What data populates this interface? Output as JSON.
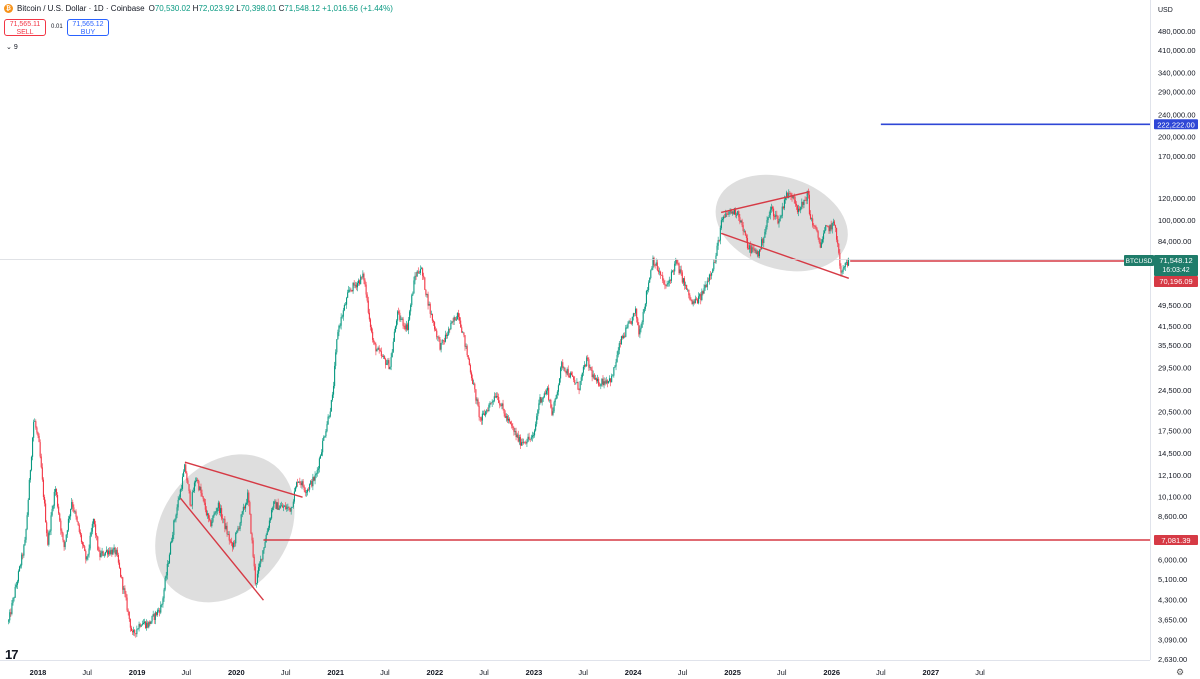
{
  "header": {
    "symbol_title": "Bitcoin / U.S. Dollar · 1D · Coinbase",
    "coin_icon": "bitcoin-icon",
    "ohlc": [
      {
        "label": "O",
        "value": "70,530.02"
      },
      {
        "label": "H",
        "value": "72,023.92"
      },
      {
        "label": "L",
        "value": "70,398.01"
      },
      {
        "label": "C",
        "value": "71,548.12"
      }
    ],
    "change": "+1,016.56 (+1.44%)"
  },
  "trade": {
    "sell_price": "71,565.11",
    "sell_label": "SELL",
    "spread": "0.01",
    "buy_price": "71,565.12",
    "buy_label": "BUY"
  },
  "indicator_count": "9",
  "branding": {
    "logo_text": "17"
  },
  "colors": {
    "up": "#089981",
    "down": "#f23645",
    "hline_red": "#d63a45",
    "hline_blue": "#2f47d6",
    "ellipse": "#d3d3d3"
  },
  "chart_data": {
    "type": "candlestick",
    "currency": "USD",
    "scale": "log",
    "yaxis_ticks": [
      480000,
      410000,
      340000,
      290000,
      240000,
      200000,
      170000,
      120000,
      100000,
      84000,
      49500,
      41500,
      35500,
      29500,
      24500,
      20500,
      17500,
      14500,
      12100,
      10100,
      8600,
      6000,
      5100,
      4300,
      3650,
      3090,
      2630
    ],
    "yaxis_tick_labels": [
      "480,000.00",
      "410,000.00",
      "340,000.00",
      "290,000.00",
      "240,000.00",
      "200,000.00",
      "170,000.00",
      "120,000.00",
      "100,000.00",
      "84,000.00",
      "49,500.00",
      "41,500.00",
      "35,500.00",
      "29,500.00",
      "24,500.00",
      "20,500.00",
      "17,500.00",
      "14,500.00",
      "12,100.00",
      "10,100.00",
      "8,600.00",
      "6,000.00",
      "5,100.00",
      "4,300.00",
      "3,650.00",
      "3,090.00",
      "2,630.00"
    ],
    "xaxis_labels": [
      "2018",
      "Jul",
      "2019",
      "Jul",
      "2020",
      "Jul",
      "2021",
      "Jul",
      "2022",
      "Jul",
      "2023",
      "Jul",
      "2024",
      "Jul",
      "2025",
      "Jul",
      "2026",
      "Jul",
      "2027",
      "Jul"
    ],
    "xaxis_label_dates": [
      "2018-01-01",
      "2018-07-01",
      "2019-01-01",
      "2019-07-01",
      "2020-01-01",
      "2020-07-01",
      "2021-01-01",
      "2021-07-01",
      "2022-01-01",
      "2022-07-01",
      "2023-01-01",
      "2023-07-01",
      "2024-01-01",
      "2024-07-01",
      "2025-01-01",
      "2025-07-01",
      "2026-01-01",
      "2026-07-01",
      "2027-01-01",
      "2027-07-01"
    ],
    "price_path": [
      [
        "2017-09-15",
        3600
      ],
      [
        "2017-11-15",
        7000
      ],
      [
        "2017-12-17",
        19500
      ],
      [
        "2018-01-05",
        15500
      ],
      [
        "2018-02-06",
        6900
      ],
      [
        "2018-03-05",
        11000
      ],
      [
        "2018-04-06",
        6600
      ],
      [
        "2018-05-05",
        9800
      ],
      [
        "2018-06-29",
        5900
      ],
      [
        "2018-07-24",
        8400
      ],
      [
        "2018-08-14",
        6200
      ],
      [
        "2018-09-15",
        6500
      ],
      [
        "2018-10-15",
        6400
      ],
      [
        "2018-11-20",
        4300
      ],
      [
        "2018-12-15",
        3200
      ],
      [
        "2019-01-15",
        3600
      ],
      [
        "2019-02-10",
        3500
      ],
      [
        "2019-04-01",
        4100
      ],
      [
        "2019-05-15",
        8000
      ],
      [
        "2019-06-26",
        13000
      ],
      [
        "2019-07-17",
        9500
      ],
      [
        "2019-08-06",
        12000
      ],
      [
        "2019-09-26",
        8000
      ],
      [
        "2019-10-26",
        9500
      ],
      [
        "2019-12-17",
        6600
      ],
      [
        "2020-02-13",
        10300
      ],
      [
        "2020-03-12",
        4900
      ],
      [
        "2020-04-15",
        7000
      ],
      [
        "2020-05-15",
        9500
      ],
      [
        "2020-06-15",
        9300
      ],
      [
        "2020-07-20",
        9200
      ],
      [
        "2020-08-15",
        11800
      ],
      [
        "2020-09-15",
        10700
      ],
      [
        "2020-10-20",
        12000
      ],
      [
        "2020-11-15",
        16000
      ],
      [
        "2020-12-20",
        23000
      ],
      [
        "2021-01-08",
        40000
      ],
      [
        "2021-02-20",
        56000
      ],
      [
        "2021-04-14",
        63000
      ],
      [
        "2021-05-19",
        36000
      ],
      [
        "2021-06-22",
        32000
      ],
      [
        "2021-07-20",
        30000
      ],
      [
        "2021-08-15",
        46000
      ],
      [
        "2021-09-21",
        41000
      ],
      [
        "2021-10-20",
        63000
      ],
      [
        "2021-11-10",
        68000
      ],
      [
        "2021-12-15",
        47000
      ],
      [
        "2022-01-22",
        35000
      ],
      [
        "2022-03-28",
        47000
      ],
      [
        "2022-05-12",
        29000
      ],
      [
        "2022-06-18",
        19000
      ],
      [
        "2022-08-15",
        24000
      ],
      [
        "2022-09-15",
        20000
      ],
      [
        "2022-11-09",
        16000
      ],
      [
        "2022-12-30",
        16500
      ],
      [
        "2023-01-20",
        22500
      ],
      [
        "2023-02-20",
        24500
      ],
      [
        "2023-03-10",
        20000
      ],
      [
        "2023-04-14",
        30500
      ],
      [
        "2023-06-15",
        25000
      ],
      [
        "2023-07-13",
        31500
      ],
      [
        "2023-08-17",
        26000
      ],
      [
        "2023-10-15",
        27000
      ],
      [
        "2023-11-15",
        36500
      ],
      [
        "2024-01-11",
        47000
      ],
      [
        "2024-01-23",
        39000
      ],
      [
        "2024-03-14",
        73000
      ],
      [
        "2024-05-01",
        57000
      ],
      [
        "2024-06-07",
        71000
      ],
      [
        "2024-08-05",
        50000
      ],
      [
        "2024-09-06",
        53000
      ],
      [
        "2024-10-29",
        72000
      ],
      [
        "2024-11-22",
        99000
      ],
      [
        "2024-12-17",
        107000
      ],
      [
        "2025-01-20",
        108000
      ],
      [
        "2025-02-28",
        80000
      ],
      [
        "2025-04-08",
        76000
      ],
      [
        "2025-05-22",
        111000
      ],
      [
        "2025-06-22",
        99000
      ],
      [
        "2025-07-14",
        123000
      ],
      [
        "2025-08-14",
        124000
      ],
      [
        "2025-09-01",
        107000
      ],
      [
        "2025-10-06",
        126000
      ],
      [
        "2025-10-11",
        106000
      ],
      [
        "2025-11-21",
        82000
      ],
      [
        "2025-12-10",
        93000
      ],
      [
        "2026-01-14",
        97000
      ],
      [
        "2026-02-05",
        63000
      ],
      [
        "2026-02-20",
        70000
      ],
      [
        "2026-03-05",
        71548.12
      ]
    ],
    "horizontal_lines": [
      {
        "price": 222222.0,
        "label": "222,222.00",
        "color": "#2f47d6",
        "from": "2026-07-01"
      },
      {
        "price": 71548.12,
        "label": "71,548.12",
        "color": "#d63a45",
        "from": "2026-03-10"
      },
      {
        "price": 7081.39,
        "label": "7,081.39",
        "color": "#d63a45",
        "from": "2020-04-10"
      }
    ],
    "trendlines": [
      {
        "from": [
          "2019-06-26",
          13500
        ],
        "to": [
          "2020-09-01",
          10100
        ]
      },
      {
        "from": [
          "2019-06-10",
          10000
        ],
        "to": [
          "2020-04-10",
          4300
        ]
      },
      {
        "from": [
          "2024-11-20",
          107000
        ],
        "to": [
          "2025-10-10",
          127000
        ]
      },
      {
        "from": [
          "2024-11-20",
          90000
        ],
        "to": [
          "2026-03-05",
          62000
        ]
      }
    ],
    "ellipses": [
      {
        "center": [
          "2019-11-20",
          7800
        ],
        "rx_days": 230,
        "price_top": 15500,
        "price_bottom": 4100,
        "rotate": 38
      },
      {
        "center": [
          "2025-07-01",
          98000
        ],
        "rx_days": 250,
        "price_top": 128000,
        "price_bottom": 60000,
        "rotate": 18
      }
    ],
    "last_price": {
      "symbol": "BTCUSD",
      "price_label": "71,548.12",
      "countdown": "16:03:42",
      "low_label": "70,196.09"
    },
    "crosshair_price": 72500
  }
}
